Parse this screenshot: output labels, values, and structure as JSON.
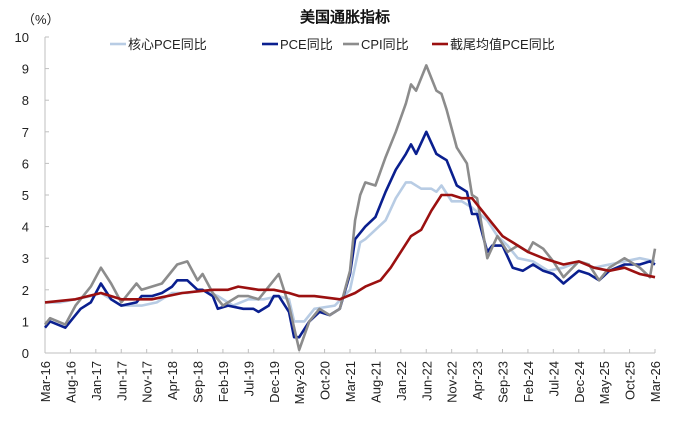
{
  "chart_data": {
    "type": "line",
    "title": "美国通胀指标",
    "ylabel": "（%）",
    "ylim": [
      0,
      10
    ],
    "yticks": [
      0,
      1,
      2,
      3,
      4,
      5,
      6,
      7,
      8,
      9,
      10
    ],
    "xlim": [
      "2016-03",
      "2026-03"
    ],
    "xtick_labels": [
      "Mar-16",
      "Aug-16",
      "Jan-17",
      "Jun-17",
      "Nov-17",
      "Apr-18",
      "Sep-18",
      "Feb-19",
      "Jul-19",
      "Dec-19",
      "May-20",
      "Oct-20",
      "Mar-21",
      "Aug-21",
      "Jan-22",
      "Jun-22",
      "Nov-22",
      "Apr-23",
      "Sep-23",
      "Feb-24",
      "Jul-24",
      "Dec-24",
      "May-25",
      "Oct-25",
      "Mar-26"
    ],
    "grid": false,
    "legend_position": "top",
    "series": [
      {
        "name": "核心PCE同比",
        "color": "#b8cce4",
        "data": [
          [
            "2016-03",
            1.6
          ],
          [
            "2016-06",
            1.6
          ],
          [
            "2016-12",
            1.8
          ],
          [
            "2017-02",
            1.9
          ],
          [
            "2017-06",
            1.5
          ],
          [
            "2017-10",
            1.5
          ],
          [
            "2018-01",
            1.6
          ],
          [
            "2018-04",
            1.9
          ],
          [
            "2018-07",
            1.9
          ],
          [
            "2018-10",
            2.0
          ],
          [
            "2019-01",
            1.8
          ],
          [
            "2019-04",
            1.5
          ],
          [
            "2019-07",
            1.7
          ],
          [
            "2019-10",
            1.7
          ],
          [
            "2020-01",
            1.8
          ],
          [
            "2020-03",
            1.7
          ],
          [
            "2020-04",
            1.0
          ],
          [
            "2020-06",
            1.0
          ],
          [
            "2020-08",
            1.4
          ],
          [
            "2020-12",
            1.5
          ],
          [
            "2021-03",
            2.0
          ],
          [
            "2021-05",
            3.5
          ],
          [
            "2021-06",
            3.6
          ],
          [
            "2021-08",
            3.9
          ],
          [
            "2021-10",
            4.2
          ],
          [
            "2021-12",
            4.9
          ],
          [
            "2022-02",
            5.4
          ],
          [
            "2022-03",
            5.4
          ],
          [
            "2022-05",
            5.2
          ],
          [
            "2022-07",
            5.2
          ],
          [
            "2022-08",
            5.1
          ],
          [
            "2022-09",
            5.3
          ],
          [
            "2022-11",
            4.8
          ],
          [
            "2023-01",
            4.8
          ],
          [
            "2023-03",
            4.6
          ],
          [
            "2023-06",
            4.2
          ],
          [
            "2023-08",
            3.7
          ],
          [
            "2023-10",
            3.4
          ],
          [
            "2023-12",
            3.0
          ],
          [
            "2024-03",
            2.9
          ],
          [
            "2024-06",
            2.6
          ],
          [
            "2024-09",
            2.7
          ],
          [
            "2024-12",
            2.9
          ],
          [
            "2025-03",
            2.7
          ],
          [
            "2025-06",
            2.8
          ],
          [
            "2025-09",
            2.9
          ],
          [
            "2025-12",
            3.0
          ],
          [
            "2026-03",
            2.9
          ]
        ]
      },
      {
        "name": "PCE同比",
        "color": "#0a1f8f",
        "data": [
          [
            "2016-03",
            0.8
          ],
          [
            "2016-04",
            1.0
          ],
          [
            "2016-07",
            0.8
          ],
          [
            "2016-09",
            1.2
          ],
          [
            "2016-10",
            1.4
          ],
          [
            "2016-12",
            1.6
          ],
          [
            "2017-02",
            2.2
          ],
          [
            "2017-04",
            1.7
          ],
          [
            "2017-06",
            1.5
          ],
          [
            "2017-09",
            1.6
          ],
          [
            "2017-10",
            1.8
          ],
          [
            "2017-12",
            1.8
          ],
          [
            "2018-02",
            1.9
          ],
          [
            "2018-04",
            2.1
          ],
          [
            "2018-05",
            2.3
          ],
          [
            "2018-07",
            2.3
          ],
          [
            "2018-09",
            2.0
          ],
          [
            "2018-10",
            2.0
          ],
          [
            "2018-12",
            1.8
          ],
          [
            "2019-01",
            1.4
          ],
          [
            "2019-03",
            1.5
          ],
          [
            "2019-06",
            1.4
          ],
          [
            "2019-08",
            1.4
          ],
          [
            "2019-09",
            1.3
          ],
          [
            "2019-11",
            1.5
          ],
          [
            "2019-12",
            1.8
          ],
          [
            "2020-01",
            1.8
          ],
          [
            "2020-03",
            1.3
          ],
          [
            "2020-04",
            0.5
          ],
          [
            "2020-05",
            0.5
          ],
          [
            "2020-07",
            1.0
          ],
          [
            "2020-09",
            1.3
          ],
          [
            "2020-11",
            1.2
          ],
          [
            "2021-01",
            1.4
          ],
          [
            "2021-03",
            2.5
          ],
          [
            "2021-04",
            3.6
          ],
          [
            "2021-06",
            4.0
          ],
          [
            "2021-08",
            4.3
          ],
          [
            "2021-10",
            5.1
          ],
          [
            "2021-12",
            5.8
          ],
          [
            "2022-02",
            6.3
          ],
          [
            "2022-03",
            6.6
          ],
          [
            "2022-04",
            6.3
          ],
          [
            "2022-06",
            7.0
          ],
          [
            "2022-08",
            6.3
          ],
          [
            "2022-09",
            6.2
          ],
          [
            "2022-10",
            6.1
          ],
          [
            "2022-12",
            5.3
          ],
          [
            "2023-02",
            5.1
          ],
          [
            "2023-03",
            4.4
          ],
          [
            "2023-04",
            4.4
          ],
          [
            "2023-06",
            3.2
          ],
          [
            "2023-07",
            3.4
          ],
          [
            "2023-09",
            3.4
          ],
          [
            "2023-11",
            2.7
          ],
          [
            "2024-01",
            2.6
          ],
          [
            "2024-03",
            2.8
          ],
          [
            "2024-05",
            2.6
          ],
          [
            "2024-07",
            2.5
          ],
          [
            "2024-09",
            2.2
          ],
          [
            "2024-12",
            2.6
          ],
          [
            "2025-02",
            2.5
          ],
          [
            "2025-04",
            2.3
          ],
          [
            "2025-06",
            2.6
          ],
          [
            "2025-09",
            2.8
          ],
          [
            "2025-12",
            2.8
          ],
          [
            "2026-02",
            2.9
          ],
          [
            "2026-03",
            2.8
          ]
        ]
      },
      {
        "name": "CPI同比",
        "color": "#8c8c8c",
        "data": [
          [
            "2016-03",
            0.9
          ],
          [
            "2016-04",
            1.1
          ],
          [
            "2016-07",
            0.9
          ],
          [
            "2016-09",
            1.5
          ],
          [
            "2016-12",
            2.1
          ],
          [
            "2017-02",
            2.7
          ],
          [
            "2017-04",
            2.2
          ],
          [
            "2017-06",
            1.6
          ],
          [
            "2017-09",
            2.2
          ],
          [
            "2017-10",
            2.0
          ],
          [
            "2017-12",
            2.1
          ],
          [
            "2018-02",
            2.2
          ],
          [
            "2018-05",
            2.8
          ],
          [
            "2018-07",
            2.9
          ],
          [
            "2018-09",
            2.3
          ],
          [
            "2018-10",
            2.5
          ],
          [
            "2018-12",
            1.9
          ],
          [
            "2019-02",
            1.5
          ],
          [
            "2019-05",
            1.8
          ],
          [
            "2019-07",
            1.8
          ],
          [
            "2019-09",
            1.7
          ],
          [
            "2019-12",
            2.3
          ],
          [
            "2020-01",
            2.5
          ],
          [
            "2020-03",
            1.5
          ],
          [
            "2020-05",
            0.1
          ],
          [
            "2020-07",
            1.0
          ],
          [
            "2020-09",
            1.4
          ],
          [
            "2020-11",
            1.2
          ],
          [
            "2021-01",
            1.4
          ],
          [
            "2021-03",
            2.6
          ],
          [
            "2021-04",
            4.2
          ],
          [
            "2021-05",
            5.0
          ],
          [
            "2021-06",
            5.4
          ],
          [
            "2021-08",
            5.3
          ],
          [
            "2021-10",
            6.2
          ],
          [
            "2021-12",
            7.0
          ],
          [
            "2022-02",
            7.9
          ],
          [
            "2022-03",
            8.5
          ],
          [
            "2022-04",
            8.3
          ],
          [
            "2022-06",
            9.1
          ],
          [
            "2022-08",
            8.3
          ],
          [
            "2022-09",
            8.2
          ],
          [
            "2022-10",
            7.7
          ],
          [
            "2022-12",
            6.5
          ],
          [
            "2023-02",
            6.0
          ],
          [
            "2023-03",
            5.0
          ],
          [
            "2023-04",
            4.9
          ],
          [
            "2023-06",
            3.0
          ],
          [
            "2023-08",
            3.7
          ],
          [
            "2023-10",
            3.2
          ],
          [
            "2023-12",
            3.4
          ],
          [
            "2024-02",
            3.2
          ],
          [
            "2024-03",
            3.5
          ],
          [
            "2024-05",
            3.3
          ],
          [
            "2024-07",
            2.9
          ],
          [
            "2024-09",
            2.4
          ],
          [
            "2024-12",
            2.9
          ],
          [
            "2025-02",
            2.8
          ],
          [
            "2025-04",
            2.3
          ],
          [
            "2025-06",
            2.7
          ],
          [
            "2025-09",
            3.0
          ],
          [
            "2025-12",
            2.7
          ],
          [
            "2026-02",
            2.4
          ],
          [
            "2026-03",
            3.3
          ]
        ]
      },
      {
        "name": "截尾均值PCE同比",
        "color": "#9b1010",
        "data": [
          [
            "2016-03",
            1.6
          ],
          [
            "2016-09",
            1.7
          ],
          [
            "2017-02",
            1.9
          ],
          [
            "2017-06",
            1.7
          ],
          [
            "2017-12",
            1.7
          ],
          [
            "2018-06",
            1.9
          ],
          [
            "2018-12",
            2.0
          ],
          [
            "2019-03",
            2.0
          ],
          [
            "2019-05",
            2.1
          ],
          [
            "2019-09",
            2.0
          ],
          [
            "2019-12",
            2.0
          ],
          [
            "2020-03",
            1.9
          ],
          [
            "2020-05",
            1.8
          ],
          [
            "2020-08",
            1.8
          ],
          [
            "2021-01",
            1.7
          ],
          [
            "2021-04",
            1.9
          ],
          [
            "2021-06",
            2.1
          ],
          [
            "2021-09",
            2.3
          ],
          [
            "2021-11",
            2.7
          ],
          [
            "2022-01",
            3.2
          ],
          [
            "2022-03",
            3.7
          ],
          [
            "2022-05",
            3.9
          ],
          [
            "2022-07",
            4.5
          ],
          [
            "2022-09",
            5.0
          ],
          [
            "2022-11",
            5.0
          ],
          [
            "2023-01",
            4.9
          ],
          [
            "2023-03",
            4.9
          ],
          [
            "2023-05",
            4.5
          ],
          [
            "2023-07",
            4.1
          ],
          [
            "2023-09",
            3.7
          ],
          [
            "2023-11",
            3.5
          ],
          [
            "2024-02",
            3.2
          ],
          [
            "2024-05",
            3.0
          ],
          [
            "2024-09",
            2.8
          ],
          [
            "2024-12",
            2.9
          ],
          [
            "2025-03",
            2.7
          ],
          [
            "2025-06",
            2.6
          ],
          [
            "2025-09",
            2.7
          ],
          [
            "2025-12",
            2.5
          ],
          [
            "2026-03",
            2.4
          ]
        ]
      }
    ]
  }
}
